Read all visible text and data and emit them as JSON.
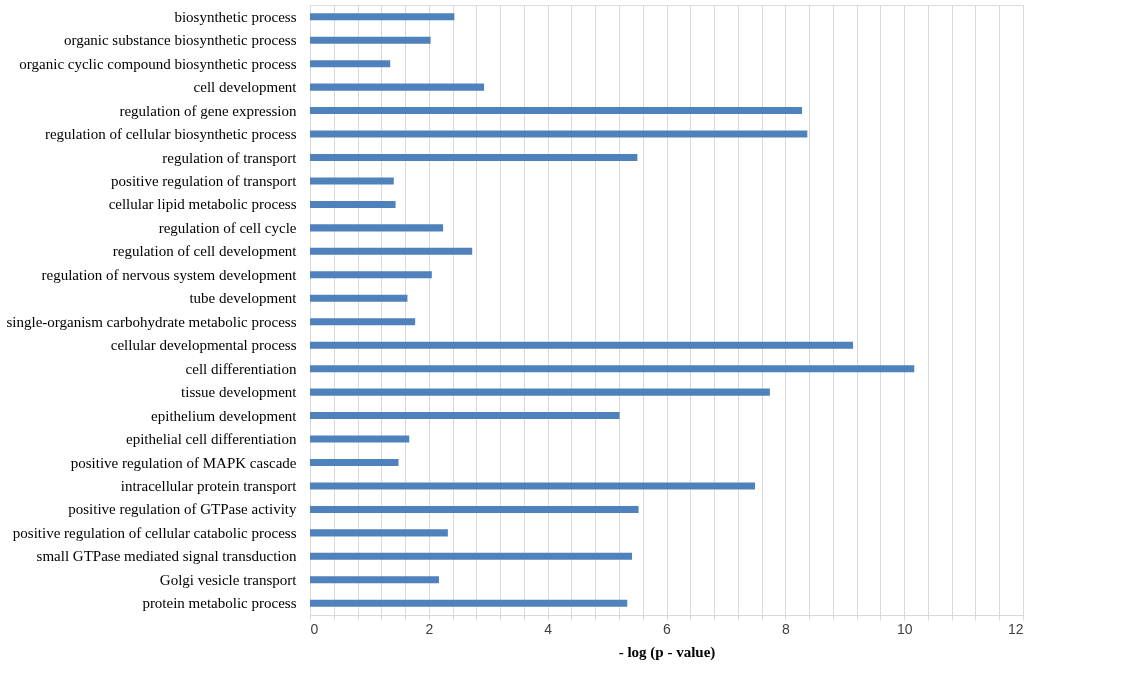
{
  "chart_data": {
    "type": "bar",
    "orientation": "horizontal",
    "xlabel": "- log (p - value)",
    "categories": [
      "biosynthetic process",
      "organic substance biosynthetic process",
      "organic cyclic compound biosynthetic process",
      "cell development",
      "regulation of gene expression",
      "regulation of cellular biosynthetic process",
      "regulation of transport",
      "positive regulation of transport",
      "cellular lipid metabolic process",
      "regulation of cell cycle",
      "regulation of cell development",
      "regulation of nervous system development",
      "tube development",
      "single-organism carbohydrate metabolic process",
      "cellular developmental process",
      "cell differentiation",
      "tissue development",
      "epithelium development",
      "epithelial cell differentiation",
      "positive regulation of MAPK cascade",
      "intracellular protein transport",
      "positive regulation of GTPase activity",
      "positive regulation of cellular catabolic process",
      "small GTPase mediated signal transduction",
      "Golgi vesicle transport",
      "protein metabolic process"
    ],
    "values": [
      2.43,
      2.03,
      1.35,
      2.93,
      8.28,
      8.37,
      5.51,
      1.41,
      1.44,
      2.24,
      2.73,
      2.05,
      1.64,
      1.77,
      9.14,
      10.17,
      7.74,
      5.21,
      1.67,
      1.49,
      7.49,
      5.53,
      2.32,
      5.42,
      2.17,
      5.34
    ],
    "color": "#4f81bd",
    "xlim": [
      0,
      12
    ],
    "xticks": [
      0,
      {
        "value": 0.4,
        "label": null
      },
      {
        "value": 0.8,
        "label": null
      },
      {
        "value": 1.2,
        "label": null
      },
      {
        "value": 1.6,
        "label": null
      },
      2,
      {
        "value": 2.4,
        "label": null
      },
      {
        "value": 2.8,
        "label": null
      },
      {
        "value": 3.2,
        "label": null
      },
      {
        "value": 3.6,
        "label": null
      },
      4,
      {
        "value": 4.4,
        "label": null
      },
      {
        "value": 4.8,
        "label": null
      },
      {
        "value": 5.2,
        "label": null
      },
      {
        "value": 5.6,
        "label": null
      },
      6,
      {
        "value": 6.4,
        "label": null
      },
      {
        "value": 6.8,
        "label": null
      },
      {
        "value": 7.2,
        "label": null
      },
      {
        "value": 7.6,
        "label": null
      },
      8,
      {
        "value": 8.4,
        "label": null
      },
      {
        "value": 8.8,
        "label": null
      },
      {
        "value": 9.2,
        "label": null
      },
      {
        "value": 9.6,
        "label": null
      },
      10,
      {
        "value": 10.4,
        "label": null
      },
      {
        "value": 10.8,
        "label": null
      },
      {
        "value": 11.2,
        "label": null
      },
      {
        "value": 11.6,
        "label": null
      },
      12
    ],
    "grid": "x"
  }
}
